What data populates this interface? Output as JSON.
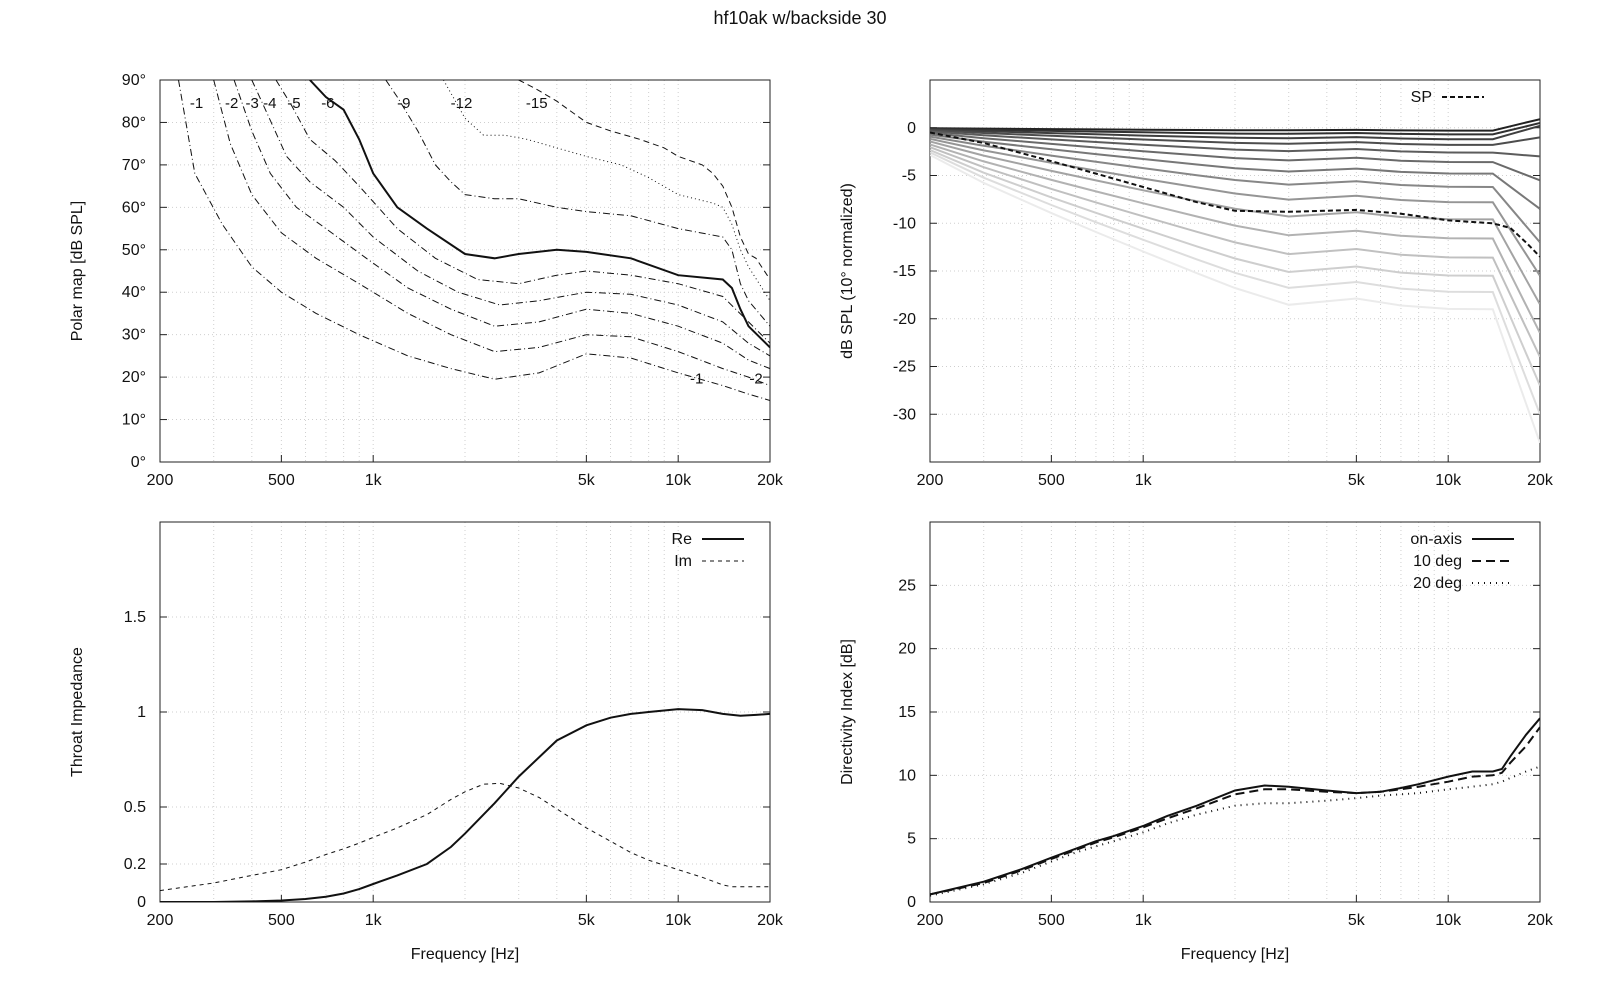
{
  "title": "hf10ak w/backside 30",
  "freq_ticks": [
    {
      "v": 200,
      "label": "200"
    },
    {
      "v": 500,
      "label": "500"
    },
    {
      "v": 1000,
      "label": "1k"
    },
    {
      "v": 5000,
      "label": "5k"
    },
    {
      "v": 10000,
      "label": "10k"
    },
    {
      "v": 20000,
      "label": "20k"
    }
  ],
  "chart_data": [
    {
      "type": "line",
      "panel": "polar_map",
      "ylabel": "Polar map [dB SPL]",
      "xscale": "log",
      "xlim": [
        200,
        20000
      ],
      "ylim": [
        0,
        90
      ],
      "grid": true,
      "yticks": [
        {
          "v": 0,
          "label": "0°"
        },
        {
          "v": 10,
          "label": "10°"
        },
        {
          "v": 20,
          "label": "20°"
        },
        {
          "v": 30,
          "label": "30°"
        },
        {
          "v": 40,
          "label": "40°"
        },
        {
          "v": 50,
          "label": "50°"
        },
        {
          "v": 60,
          "label": "60°"
        },
        {
          "v": 70,
          "label": "70°"
        },
        {
          "v": 80,
          "label": "80°"
        },
        {
          "v": 90,
          "label": "90°"
        }
      ],
      "series": [
        {
          "name": "-1",
          "x": [
            230,
            260,
            320,
            400,
            500,
            650,
            900,
            1300,
            1800,
            2500,
            3500,
            5000,
            7000,
            10000,
            14000,
            17000,
            20000
          ],
          "y": [
            90,
            68,
            56,
            46,
            40,
            35,
            30,
            25,
            22,
            19.5,
            21,
            25.5,
            24.5,
            21,
            18,
            16,
            14.5
          ]
        },
        {
          "name": "-2",
          "x": [
            300,
            340,
            400,
            500,
            650,
            900,
            1300,
            1800,
            2500,
            3500,
            5000,
            7000,
            10000,
            14000,
            17000,
            20000
          ],
          "y": [
            90,
            75,
            63,
            54,
            48,
            42,
            35,
            30,
            26,
            27,
            30,
            29.5,
            26,
            22,
            20,
            18
          ]
        },
        {
          "name": "-3",
          "x": [
            350,
            400,
            460,
            560,
            700,
            950,
            1300,
            1800,
            2500,
            3500,
            5000,
            7000,
            10000,
            14000,
            17000,
            20000
          ],
          "y": [
            90,
            78,
            68,
            60,
            55,
            48,
            41,
            36,
            32,
            33,
            36,
            35,
            32,
            28,
            24,
            22
          ]
        },
        {
          "name": "-4",
          "x": [
            400,
            450,
            520,
            620,
            800,
            1000,
            1400,
            1900,
            2600,
            3500,
            5000,
            7000,
            10000,
            14000,
            17000,
            20000
          ],
          "y": [
            90,
            82,
            72,
            66,
            60,
            53,
            45,
            40,
            37,
            38,
            40,
            39.5,
            37,
            33,
            28,
            25
          ]
        },
        {
          "name": "-5",
          "x": [
            480,
            540,
            620,
            750,
            900,
            1200,
            1600,
            2200,
            3000,
            4000,
            5000,
            7000,
            10000,
            14000,
            17000,
            20000
          ],
          "y": [
            90,
            84,
            76,
            71,
            65,
            55,
            48,
            43,
            42,
            44,
            45,
            44,
            42,
            39,
            33,
            28
          ]
        },
        {
          "name": "-6",
          "x": [
            620,
            700,
            800,
            900,
            1000,
            1200,
            1500,
            2000,
            2500,
            3000,
            4000,
            5000,
            7000,
            10000,
            14000,
            15000,
            16000,
            17000,
            20000
          ],
          "y": [
            90,
            86,
            83,
            76,
            68,
            60,
            55,
            49,
            48,
            49,
            50,
            49.5,
            48,
            44,
            43,
            41,
            36,
            32,
            27
          ]
        },
        {
          "name": "-9",
          "x": [
            1100,
            1200,
            1400,
            1600,
            1800,
            2000,
            2500,
            3000,
            4000,
            5000,
            7000,
            10000,
            14000,
            15000,
            16000,
            17000,
            20000
          ],
          "y": [
            90,
            86,
            78,
            70,
            66,
            63,
            62,
            62,
            60,
            59,
            58,
            55,
            53,
            50,
            42,
            38,
            32
          ]
        },
        {
          "name": "-12",
          "x": [
            1700,
            2000,
            2300,
            2700,
            3200,
            4000,
            5000,
            6500,
            8000,
            10000,
            13000,
            14000,
            15000,
            16000,
            17000,
            20000
          ],
          "y": [
            90,
            81,
            77,
            77,
            76,
            74,
            72,
            70,
            67,
            63,
            61,
            60,
            56,
            50,
            46,
            38
          ]
        },
        {
          "name": "-15",
          "x": [
            3000,
            3400,
            4000,
            5000,
            6000,
            7500,
            9000,
            10000,
            12000,
            13000,
            14000,
            15000,
            16000,
            17000,
            18000,
            20000
          ],
          "y": [
            90,
            88,
            85,
            80,
            78,
            76,
            74,
            72,
            70,
            68,
            65,
            60,
            53,
            49,
            48,
            43
          ]
        }
      ]
    },
    {
      "type": "line",
      "panel": "normalized_spl",
      "ylabel": "dB SPL (10° normalized)",
      "xscale": "log",
      "xlim": [
        200,
        20000
      ],
      "ylim": [
        -35,
        5
      ],
      "grid": true,
      "yticks": [
        {
          "v": 0,
          "label": "0"
        },
        {
          "v": -5,
          "label": "-5"
        },
        {
          "v": -10,
          "label": "-10"
        },
        {
          "v": -15,
          "label": "-15"
        },
        {
          "v": -20,
          "label": "-20"
        },
        {
          "v": -25,
          "label": "-25"
        },
        {
          "v": -30,
          "label": "-30"
        }
      ],
      "legend_label": "SP",
      "legend_position": "top-right",
      "x": [
        200,
        300,
        500,
        700,
        1000,
        1500,
        2000,
        3000,
        5000,
        7000,
        10000,
        14000,
        16000,
        18000,
        20000
      ],
      "sp": [
        -0.5,
        -1.6,
        -3.5,
        -4.8,
        -6.2,
        -7.8,
        -8.7,
        -8.8,
        -8.6,
        -9.0,
        -9.7,
        -10.0,
        -10.5,
        -12.0,
        -13.5
      ],
      "off_axis_levels": [
        -0.3,
        -0.7,
        -1.2,
        -1.8,
        -2.6,
        -3.6,
        -4.8,
        -6.2,
        -7.8,
        -9.6,
        -11.6,
        -13.6,
        -15.5,
        -17.2,
        -19.0
      ],
      "off_axis_tail": [
        0.9,
        0.5,
        0.2,
        -1.0,
        -3.0,
        -5.5,
        -8.5,
        -12,
        -15.5,
        -18.5,
        -21.5,
        -24,
        -27,
        -30,
        -33
      ]
    },
    {
      "type": "line",
      "panel": "throat_impedance",
      "xlabel": "Frequency [Hz]",
      "ylabel": "Throat Impedance",
      "xscale": "log",
      "xlim": [
        200,
        20000
      ],
      "ylim": [
        0,
        2
      ],
      "grid": true,
      "yticks": [
        {
          "v": 0,
          "label": "0"
        },
        {
          "v": 0.2,
          "label": "0.2"
        },
        {
          "v": 0.5,
          "label": "0.5"
        },
        {
          "v": 1,
          "label": "1"
        },
        {
          "v": 1.5,
          "label": "1.5"
        }
      ],
      "legend_position": "top-right",
      "series": [
        {
          "name": "Re",
          "x": [
            200,
            300,
            400,
            500,
            600,
            700,
            800,
            900,
            1000,
            1200,
            1500,
            1800,
            2000,
            2500,
            3000,
            4000,
            5000,
            6000,
            7000,
            8000,
            10000,
            12000,
            14000,
            16000,
            18000,
            20000
          ],
          "y": [
            0,
            0,
            0.003,
            0.008,
            0.016,
            0.028,
            0.045,
            0.068,
            0.095,
            0.14,
            0.2,
            0.29,
            0.36,
            0.52,
            0.66,
            0.85,
            0.93,
            0.97,
            0.99,
            1.0,
            1.015,
            1.01,
            0.99,
            0.98,
            0.985,
            0.99
          ]
        },
        {
          "name": "Im",
          "x": [
            200,
            300,
            400,
            500,
            600,
            700,
            800,
            900,
            1000,
            1200,
            1500,
            1800,
            2000,
            2300,
            2600,
            3000,
            3500,
            4000,
            5000,
            6000,
            7000,
            8000,
            10000,
            12000,
            14000,
            15000,
            16000,
            18000,
            20000
          ],
          "y": [
            0.06,
            0.1,
            0.14,
            0.17,
            0.21,
            0.25,
            0.28,
            0.31,
            0.34,
            0.39,
            0.46,
            0.54,
            0.58,
            0.62,
            0.625,
            0.6,
            0.55,
            0.49,
            0.39,
            0.32,
            0.26,
            0.22,
            0.17,
            0.13,
            0.09,
            0.08,
            0.08,
            0.08,
            0.08
          ]
        }
      ]
    },
    {
      "type": "line",
      "panel": "directivity_index",
      "xlabel": "Frequency [Hz]",
      "ylabel": "Directivity Index [dB]",
      "xscale": "log",
      "xlim": [
        200,
        20000
      ],
      "ylim": [
        0,
        30
      ],
      "grid": true,
      "yticks": [
        {
          "v": 0,
          "label": "0"
        },
        {
          "v": 5,
          "label": "5"
        },
        {
          "v": 10,
          "label": "10"
        },
        {
          "v": 15,
          "label": "15"
        },
        {
          "v": 20,
          "label": "20"
        },
        {
          "v": 25,
          "label": "25"
        }
      ],
      "legend_position": "top-right",
      "series": [
        {
          "name": "on-axis",
          "x": [
            200,
            300,
            400,
            500,
            600,
            700,
            800,
            1000,
            1200,
            1500,
            2000,
            2500,
            3000,
            4000,
            5000,
            6000,
            7000,
            8000,
            10000,
            12000,
            14000,
            15000,
            16000,
            18000,
            20000
          ],
          "y": [
            0.6,
            1.6,
            2.6,
            3.5,
            4.2,
            4.8,
            5.2,
            6.0,
            6.8,
            7.6,
            8.8,
            9.2,
            9.1,
            8.8,
            8.6,
            8.7,
            9.0,
            9.3,
            9.9,
            10.3,
            10.3,
            10.5,
            11.5,
            13.2,
            14.5
          ]
        },
        {
          "name": "10 deg",
          "x": [
            200,
            300,
            400,
            500,
            600,
            700,
            800,
            1000,
            1200,
            1500,
            2000,
            2500,
            3000,
            4000,
            5000,
            6000,
            7000,
            8000,
            10000,
            12000,
            14000,
            15000,
            16000,
            18000,
            20000
          ],
          "y": [
            0.6,
            1.5,
            2.5,
            3.4,
            4.1,
            4.7,
            5.1,
            5.9,
            6.6,
            7.4,
            8.5,
            8.9,
            8.9,
            8.7,
            8.6,
            8.7,
            8.9,
            9.1,
            9.5,
            9.9,
            10.0,
            10.2,
            11.0,
            12.3,
            13.8
          ]
        },
        {
          "name": "20 deg",
          "x": [
            200,
            300,
            400,
            500,
            600,
            700,
            800,
            1000,
            1200,
            1500,
            2000,
            2500,
            3000,
            4000,
            5000,
            6000,
            7000,
            8000,
            10000,
            12000,
            14000,
            15000,
            16000,
            18000,
            20000
          ],
          "y": [
            0.5,
            1.4,
            2.3,
            3.2,
            3.9,
            4.4,
            4.8,
            5.5,
            6.2,
            6.9,
            7.6,
            7.8,
            7.8,
            8.0,
            8.2,
            8.4,
            8.5,
            8.6,
            8.9,
            9.1,
            9.3,
            9.5,
            9.8,
            10.3,
            10.7
          ]
        }
      ]
    }
  ]
}
